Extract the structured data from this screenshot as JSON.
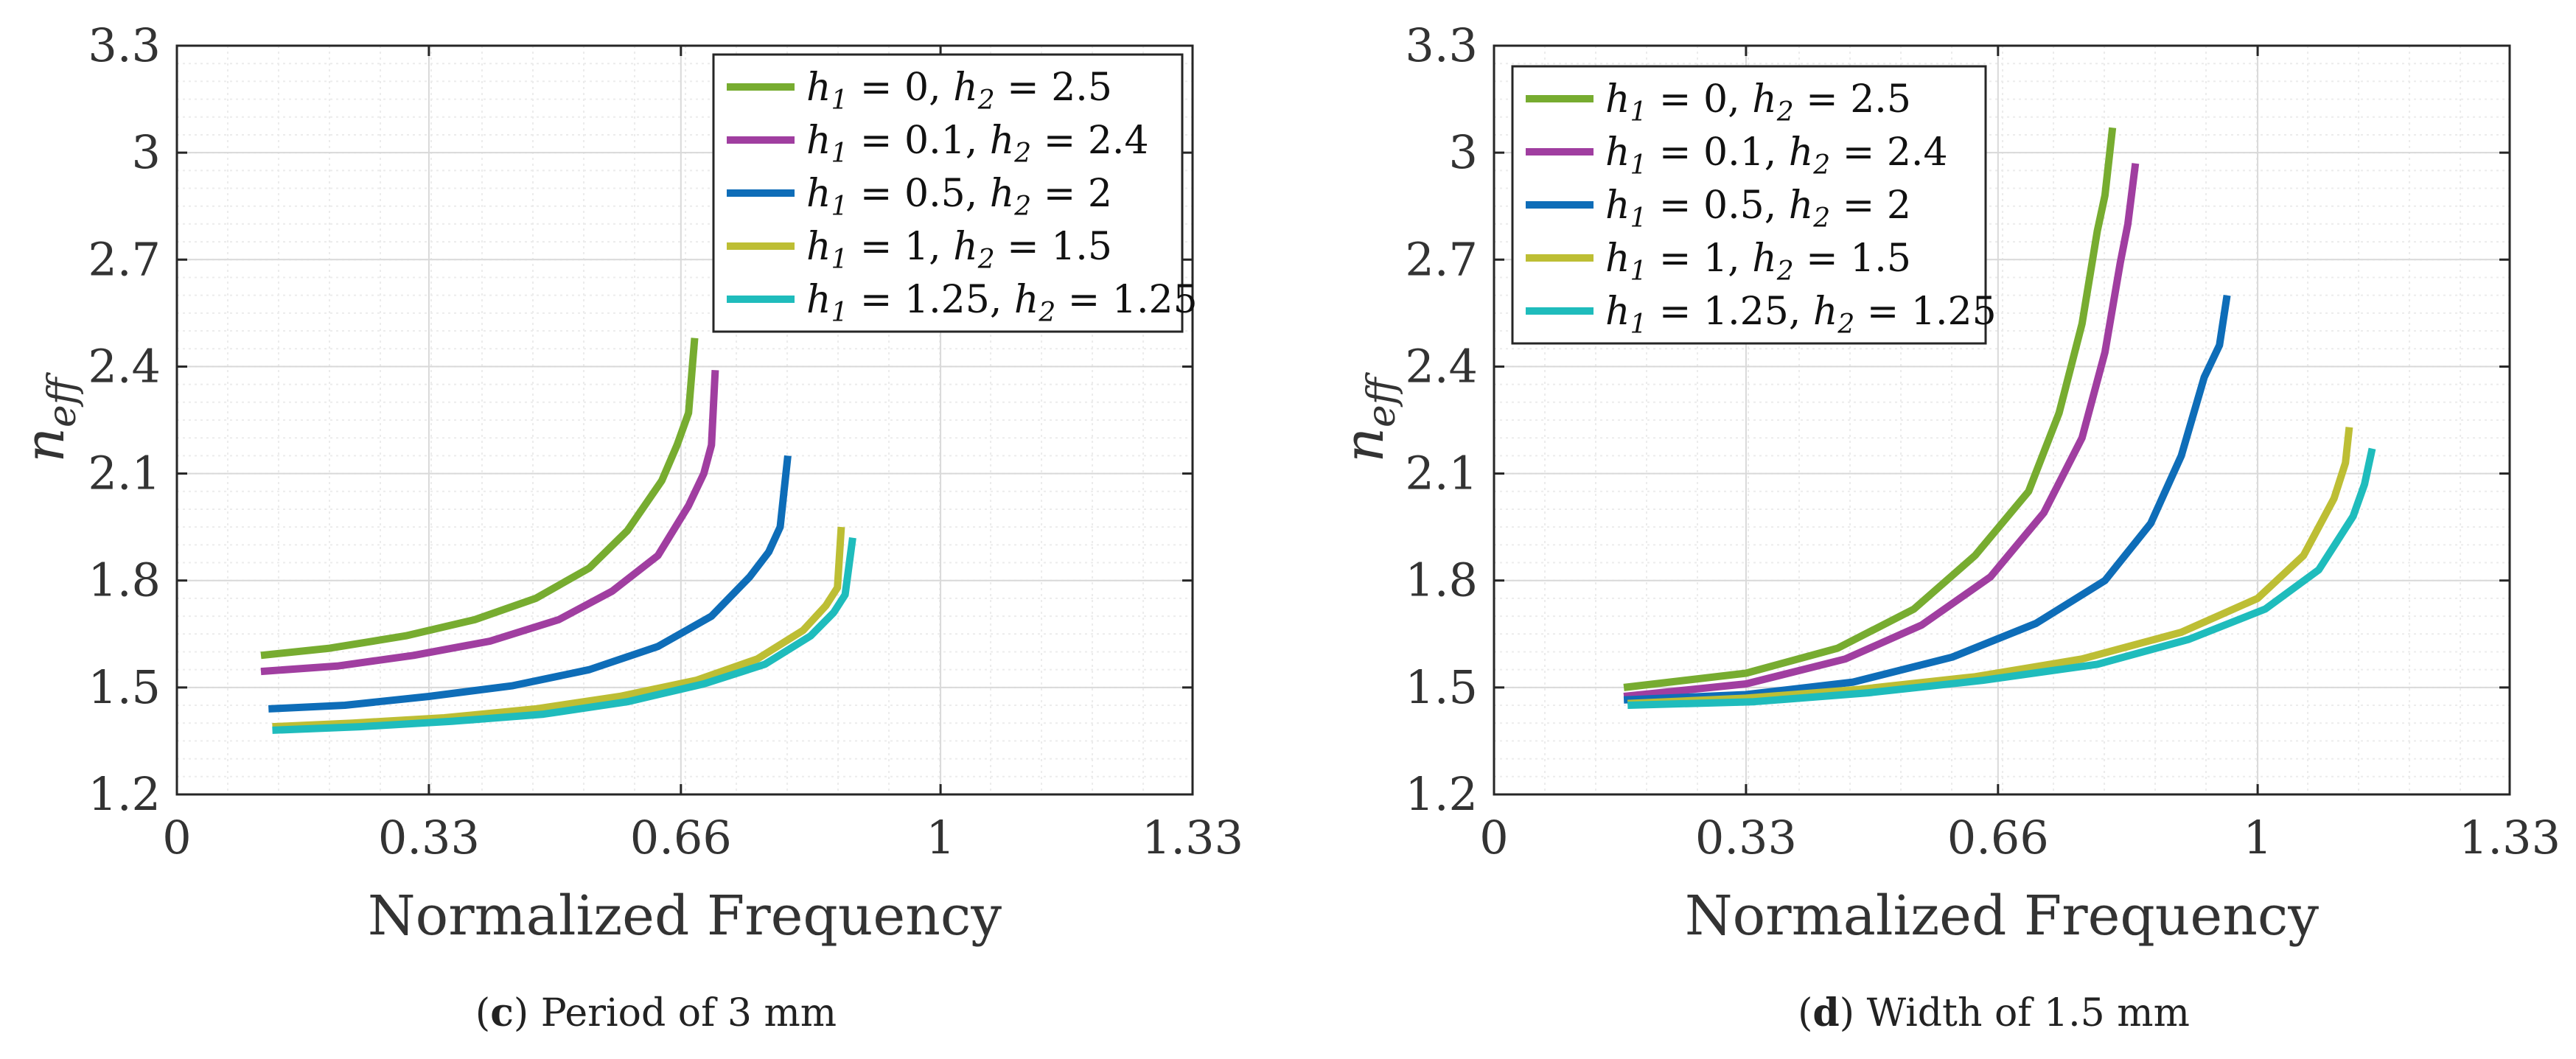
{
  "chart_data": [
    {
      "type": "line",
      "id": "c",
      "caption_letter": "c",
      "caption_text": "Period of 3 mm",
      "xlabel": "Normalized Frequency",
      "ylabel": "n_eff",
      "ylabel_text": "n",
      "ylabel_sub": "eff",
      "xlim": [
        0,
        1.33
      ],
      "ylim": [
        1.2,
        3.3
      ],
      "xticks": [
        0,
        0.33,
        0.66,
        1,
        1.33
      ],
      "xtick_labels": [
        "0",
        "0.33",
        "0.66",
        "1",
        "1.33"
      ],
      "yticks": [
        1.2,
        1.5,
        1.8,
        2.1,
        2.4,
        2.7,
        3,
        3.3
      ],
      "ytick_labels": [
        "1.2",
        "1.5",
        "1.8",
        "2.1",
        "2.4",
        "2.7",
        "3",
        "3.3"
      ],
      "grid": true,
      "legend_position": "top-right",
      "series": [
        {
          "name": "h1 = 0, h2 = 2.5",
          "color": "#77ac30",
          "x": [
            0.11,
            0.2,
            0.3,
            0.39,
            0.47,
            0.54,
            0.59,
            0.635,
            0.655,
            0.67,
            0.678
          ],
          "y": [
            1.59,
            1.61,
            1.645,
            1.69,
            1.75,
            1.835,
            1.94,
            2.08,
            2.18,
            2.27,
            2.48
          ]
        },
        {
          "name": "h1 = 0.1, h2 = 2.4",
          "color": "#a03ea0",
          "x": [
            0.11,
            0.21,
            0.31,
            0.41,
            0.5,
            0.57,
            0.63,
            0.67,
            0.69,
            0.7,
            0.705
          ],
          "y": [
            1.545,
            1.56,
            1.59,
            1.63,
            1.69,
            1.77,
            1.87,
            2.01,
            2.1,
            2.18,
            2.39
          ]
        },
        {
          "name": "h1 = 0.5, h2 = 2",
          "color": "#0e6db8",
          "x": [
            0.12,
            0.22,
            0.33,
            0.44,
            0.54,
            0.63,
            0.7,
            0.75,
            0.775,
            0.79,
            0.8
          ],
          "y": [
            1.44,
            1.45,
            1.475,
            1.505,
            1.55,
            1.615,
            1.7,
            1.81,
            1.88,
            1.95,
            2.15
          ]
        },
        {
          "name": "h1 = 1, h2 = 1.5",
          "color": "#bdbe34",
          "x": [
            0.125,
            0.23,
            0.35,
            0.47,
            0.58,
            0.68,
            0.76,
            0.82,
            0.85,
            0.865,
            0.87
          ],
          "y": [
            1.39,
            1.4,
            1.415,
            1.44,
            1.475,
            1.52,
            1.58,
            1.66,
            1.73,
            1.78,
            1.95
          ]
        },
        {
          "name": "h1 = 1.25, h2 = 1.25",
          "color": "#1fbcbc",
          "x": [
            0.125,
            0.24,
            0.36,
            0.48,
            0.59,
            0.69,
            0.77,
            0.83,
            0.86,
            0.875,
            0.885
          ],
          "y": [
            1.38,
            1.39,
            1.405,
            1.425,
            1.46,
            1.51,
            1.565,
            1.645,
            1.71,
            1.76,
            1.92
          ]
        }
      ]
    },
    {
      "type": "line",
      "id": "d",
      "caption_letter": "d",
      "caption_text": "Width of 1.5 mm",
      "xlabel": "Normalized Frequency",
      "ylabel": "n_eff",
      "ylabel_text": "n",
      "ylabel_sub": "eff",
      "xlim": [
        0,
        1.33
      ],
      "ylim": [
        1.2,
        3.3
      ],
      "xticks": [
        0,
        0.33,
        0.66,
        1,
        1.33
      ],
      "xtick_labels": [
        "0",
        "0.33",
        "0.66",
        "1",
        "1.33"
      ],
      "yticks": [
        1.2,
        1.5,
        1.8,
        2.1,
        2.4,
        2.7,
        3,
        3.3
      ],
      "ytick_labels": [
        "1.2",
        "1.5",
        "1.8",
        "2.1",
        "2.4",
        "2.7",
        "3",
        "3.3"
      ],
      "grid": true,
      "legend_position": "top-left",
      "series": [
        {
          "name": "h1 = 0, h2 = 2.5",
          "color": "#77ac30",
          "x": [
            0.17,
            0.33,
            0.45,
            0.55,
            0.63,
            0.7,
            0.74,
            0.77,
            0.79,
            0.8,
            0.81
          ],
          "y": [
            1.5,
            1.54,
            1.61,
            1.72,
            1.87,
            2.05,
            2.27,
            2.52,
            2.78,
            2.88,
            3.07
          ]
        },
        {
          "name": "h1 = 0.1, h2 = 2.4",
          "color": "#a03ea0",
          "x": [
            0.17,
            0.33,
            0.46,
            0.56,
            0.65,
            0.72,
            0.77,
            0.8,
            0.82,
            0.83,
            0.84
          ],
          "y": [
            1.475,
            1.51,
            1.58,
            1.675,
            1.81,
            1.99,
            2.2,
            2.44,
            2.69,
            2.8,
            2.97
          ]
        },
        {
          "name": "h1 = 0.5, h2 = 2",
          "color": "#0e6db8",
          "x": [
            0.17,
            0.33,
            0.47,
            0.6,
            0.71,
            0.8,
            0.86,
            0.9,
            0.93,
            0.95,
            0.96
          ],
          "y": [
            1.465,
            1.48,
            1.515,
            1.585,
            1.68,
            1.8,
            1.96,
            2.15,
            2.37,
            2.46,
            2.6
          ]
        },
        {
          "name": "h1 = 1, h2 = 1.5",
          "color": "#bdbe34",
          "x": [
            0.175,
            0.33,
            0.48,
            0.63,
            0.77,
            0.9,
            1.0,
            1.06,
            1.1,
            1.115,
            1.12
          ],
          "y": [
            1.455,
            1.47,
            1.495,
            1.53,
            1.58,
            1.655,
            1.75,
            1.87,
            2.03,
            2.13,
            2.23
          ]
        },
        {
          "name": "h1 = 1.25, h2 = 1.25",
          "color": "#1fbcbc",
          "x": [
            0.175,
            0.34,
            0.49,
            0.64,
            0.79,
            0.91,
            1.01,
            1.08,
            1.125,
            1.14,
            1.15
          ],
          "y": [
            1.45,
            1.46,
            1.485,
            1.52,
            1.565,
            1.635,
            1.72,
            1.83,
            1.98,
            2.07,
            2.17
          ]
        }
      ]
    }
  ],
  "legend_symbols": {
    "h": "h",
    "sub1": "1",
    "sub2": "2",
    "eq": " = ",
    "sep": ", "
  },
  "legend_entries": [
    {
      "a": "0",
      "b": "2.5"
    },
    {
      "a": "0.1",
      "b": "2.4"
    },
    {
      "a": "0.5",
      "b": "2"
    },
    {
      "a": "1",
      "b": "1.5"
    },
    {
      "a": "1.25",
      "b": "1.25"
    }
  ],
  "colors": {
    "axis": "#262626",
    "grid_major": "#d9d9d9",
    "grid_minor": "#ececec",
    "text": "#333333"
  }
}
